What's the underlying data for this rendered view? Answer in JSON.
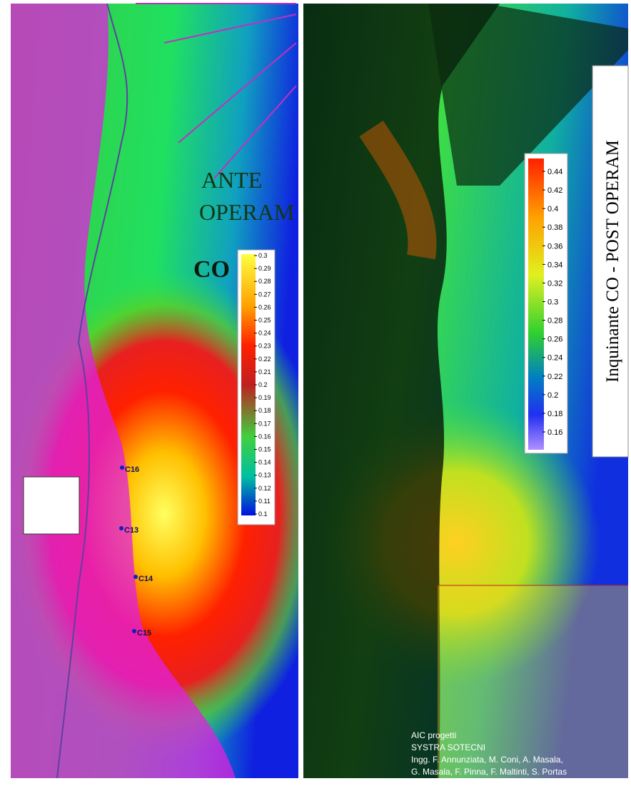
{
  "left_panel": {
    "title_line1": "ANTE",
    "title_line2": "OPERAM",
    "pollutant": "CO",
    "colorbar_labels": [
      "0.3",
      "0.29",
      "0.28",
      "0.27",
      "0.26",
      "0.25",
      "0.24",
      "0.23",
      "0.22",
      "0.21",
      "0.2",
      "0.19",
      "0.18",
      "0.17",
      "0.16",
      "0.15",
      "0.14",
      "0.13",
      "0.12",
      "0.11",
      "0.1"
    ],
    "stations": [
      "C16",
      "C13",
      "C14",
      "C15"
    ]
  },
  "right_panel": {
    "title": "Inquinante CO - POST OPERAM",
    "colorbar_labels": [
      "0.44",
      "0.42",
      "0.4",
      "0.38",
      "0.36",
      "0.34",
      "0.32",
      "0.3",
      "0.28",
      "0.26",
      "0.24",
      "0.22",
      "0.2",
      "0.18",
      "0.16"
    ],
    "credits": [
      "AIC progetti",
      "SYSTRA SOTECNI",
      "Ingg. F. Annunziata, M. Coni, A. Masala,",
      "G. Masala, F. Pinna, F. Maltinti, S. Portas"
    ]
  }
}
